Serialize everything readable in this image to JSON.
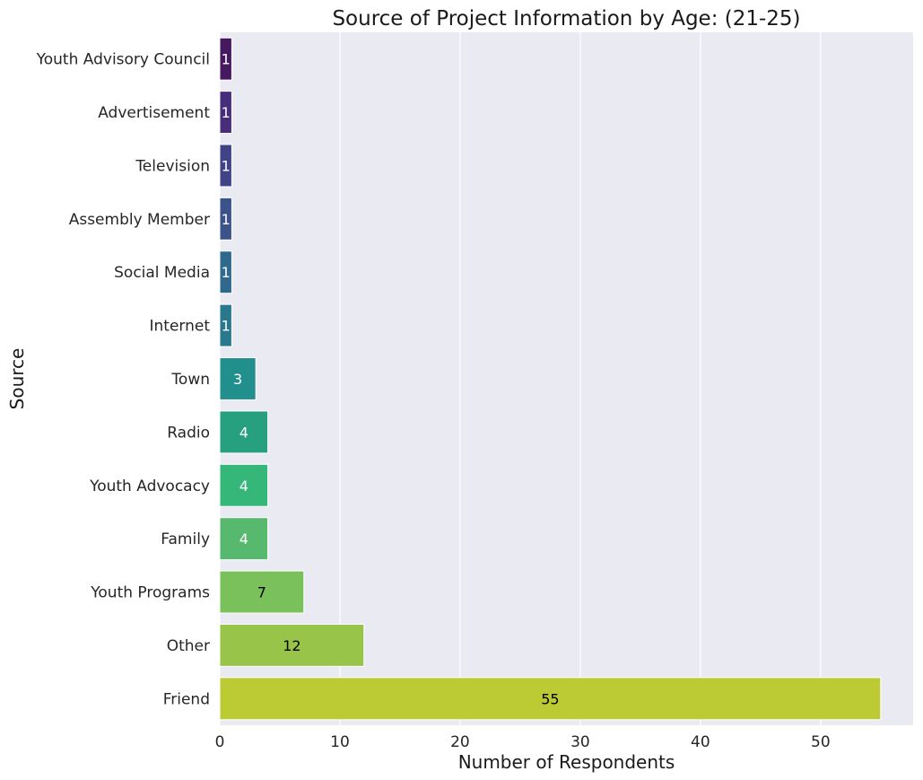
{
  "chart_data": {
    "type": "bar",
    "orientation": "horizontal",
    "title": "Source of Project Information by Age: (21-25)",
    "xlabel": "Number of Respondents",
    "ylabel": "Source",
    "xlim": [
      0,
      57.7
    ],
    "xticks": [
      0,
      10,
      20,
      30,
      40,
      50
    ],
    "grid": true,
    "categories": [
      "Youth Advisory Council",
      "Advertisement",
      "Television",
      "Assembly Member",
      "Social Media",
      "Internet",
      "Town",
      "Radio",
      "Youth Advocacy",
      "Family",
      "Youth Programs",
      "Other",
      "Friend"
    ],
    "values": [
      1,
      1,
      1,
      1,
      1,
      1,
      3,
      4,
      4,
      4,
      7,
      12,
      55
    ],
    "data_labels": [
      "1",
      "1",
      "1",
      "1",
      "1",
      "1",
      "3",
      "4",
      "4",
      "4",
      "7",
      "12",
      "55"
    ],
    "colors": [
      "#46185f",
      "#472d7b",
      "#404387",
      "#3b528b",
      "#30698e",
      "#2a788e",
      "#21908d",
      "#27a080",
      "#35b779",
      "#56b96d",
      "#7ac15c",
      "#98c44a",
      "#bcca33"
    ],
    "label_colors": [
      "#ffffff",
      "#ffffff",
      "#ffffff",
      "#ffffff",
      "#ffffff",
      "#ffffff",
      "#ffffff",
      "#ffffff",
      "#ffffff",
      "#ffffff",
      "#000000",
      "#000000",
      "#000000"
    ],
    "background_color": "#eaeaf2",
    "grid_color": "#ffffff"
  }
}
